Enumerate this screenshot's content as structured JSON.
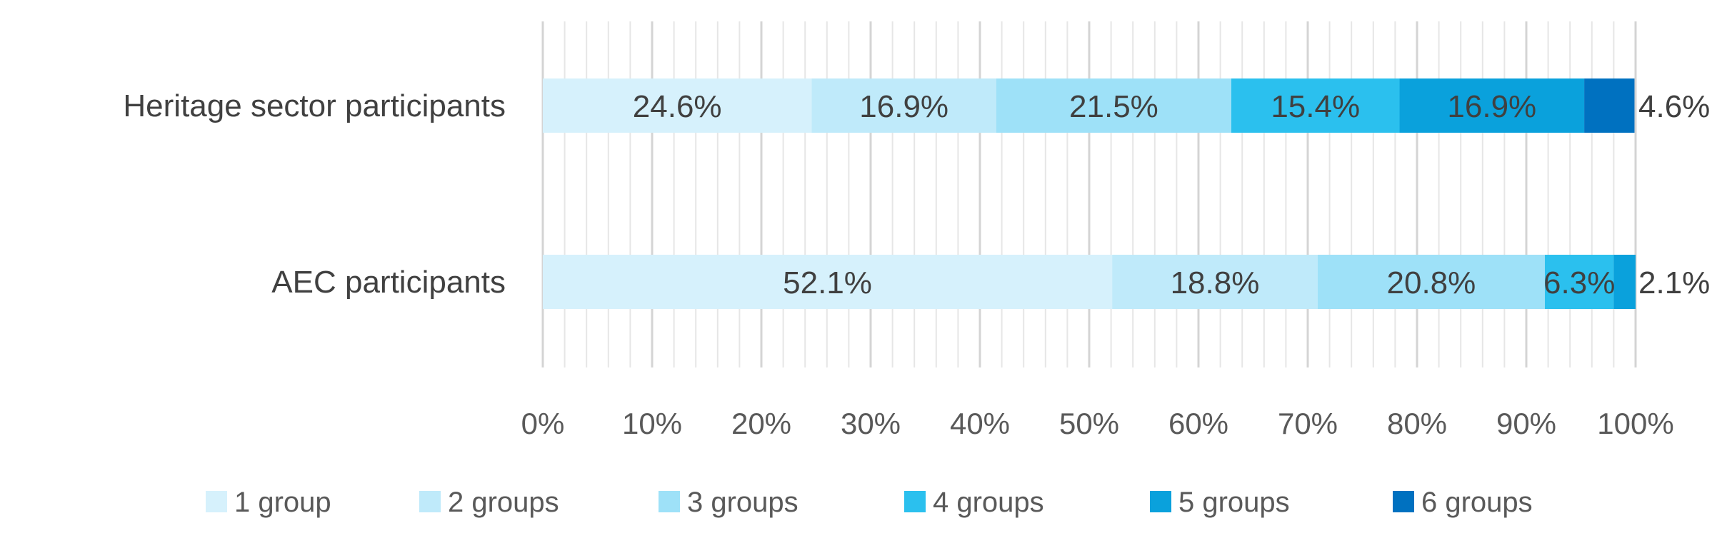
{
  "chart_data": {
    "type": "bar",
    "orientation": "horizontal",
    "stacked": true,
    "title": "",
    "xlabel": "",
    "ylabel": "",
    "xlim": [
      0,
      100
    ],
    "categories": [
      "Heritage sector participants",
      "AEC participants"
    ],
    "x_ticks": [
      "0%",
      "10%",
      "20%",
      "30%",
      "40%",
      "50%",
      "60%",
      "70%",
      "80%",
      "90%",
      "100%"
    ],
    "series": [
      {
        "name": "1 group",
        "color": "#d6f1fc",
        "values": [
          24.6,
          52.1
        ],
        "labels": [
          "24.6%",
          "52.1%"
        ]
      },
      {
        "name": "2 groups",
        "color": "#bfeafa",
        "values": [
          16.9,
          18.8
        ],
        "labels": [
          "16.9%",
          "18.8%"
        ]
      },
      {
        "name": "3 groups",
        "color": "#9ee1f8",
        "values": [
          21.5,
          20.8
        ],
        "labels": [
          "21.5%",
          "20.8%"
        ]
      },
      {
        "name": "4 groups",
        "color": "#2bc0ee",
        "values": [
          15.4,
          6.3
        ],
        "labels": [
          "15.4%",
          "6.3%"
        ]
      },
      {
        "name": "5 groups",
        "color": "#0aa1dc",
        "values": [
          16.9,
          2.1
        ],
        "labels": [
          "16.9%",
          "2.1%"
        ]
      },
      {
        "name": "6 groups",
        "color": "#0071c0",
        "values": [
          4.6,
          0
        ],
        "labels": [
          "4.6%",
          ""
        ]
      }
    ],
    "grid": true,
    "legend_position": "bottom"
  }
}
